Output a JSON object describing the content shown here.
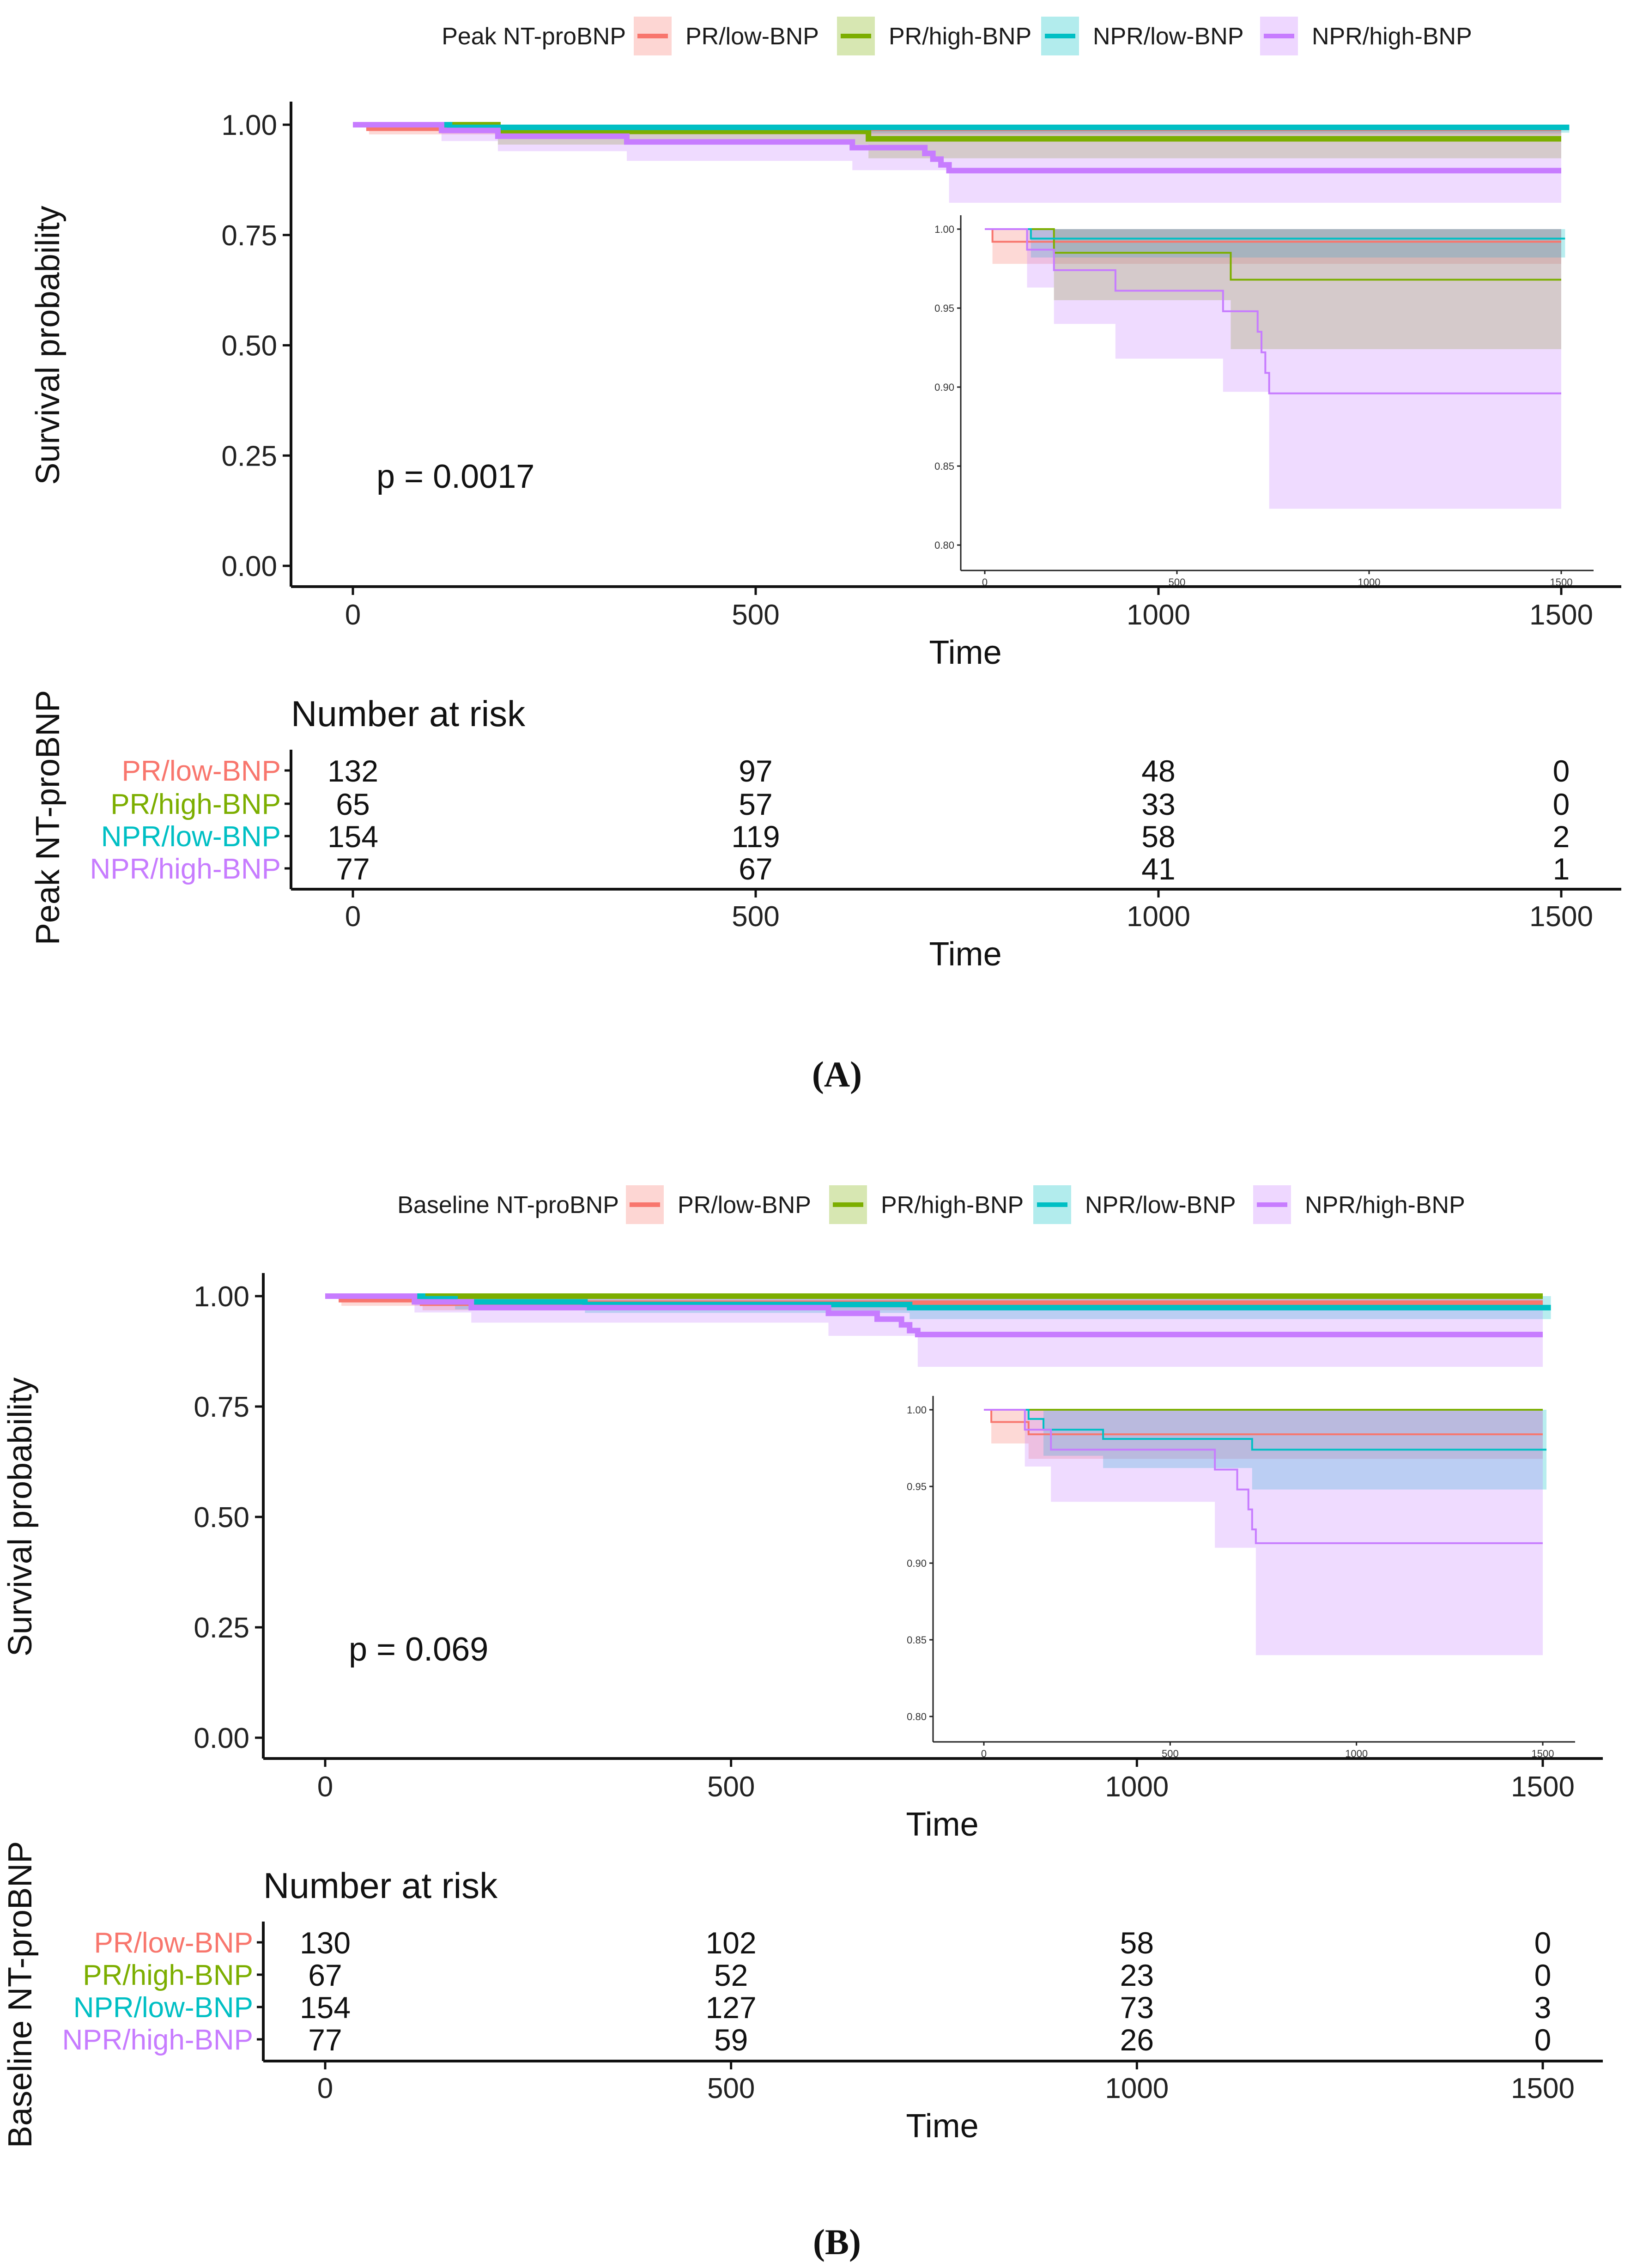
{
  "colors": {
    "PR/low-BNP": "#F8766D",
    "PR/high-BNP": "#7CAE00",
    "NPR/low-BNP": "#00BFC4",
    "NPR/high-BNP": "#C77CFF"
  },
  "chart_data": [
    {
      "panel": "(A)",
      "panel_letter": "A",
      "type": "line",
      "subtype": "kaplan-meier",
      "legend_title": "Peak NT-proBNP",
      "legend_position": "top",
      "xlabel": "Time",
      "ylabel": "Survival probability",
      "xlim": [
        0,
        1500
      ],
      "ylim": [
        0,
        1
      ],
      "x_ticks": [
        "0",
        "500",
        "1000",
        "1500"
      ],
      "y_ticks": [
        "0.00",
        "0.25",
        "0.50",
        "0.75",
        "1.00"
      ],
      "pvalue_text": "p = 0.0017",
      "inset": {
        "ylim": [
          0.8,
          1.0
        ],
        "x_ticks": [
          "0",
          "500",
          "1000",
          "1500"
        ],
        "y_ticks": [
          "0.80",
          "0.85",
          "0.90",
          "0.95",
          "1.00"
        ]
      },
      "series": [
        {
          "name": "PR/low-BNP",
          "end": 1500,
          "steps": [
            [
              0,
              1.0
            ],
            [
              20,
              0.992
            ]
          ],
          "ci_lower": [
            [
              0,
              1.0
            ],
            [
              20,
              0.978
            ],
            [
              1500,
              0.978
            ]
          ],
          "ci_upper": [
            [
              0,
              1.0
            ],
            [
              1500,
              1.0
            ]
          ]
        },
        {
          "name": "PR/high-BNP",
          "end": 1500,
          "steps": [
            [
              0,
              1.0
            ],
            [
              180,
              0.985
            ],
            [
              640,
              0.968
            ]
          ],
          "ci_lower": [
            [
              0,
              1.0
            ],
            [
              180,
              0.955
            ],
            [
              640,
              0.924
            ],
            [
              1500,
              0.924
            ]
          ],
          "ci_upper": [
            [
              0,
              1.0
            ],
            [
              1500,
              1.0
            ]
          ]
        },
        {
          "name": "NPR/low-BNP",
          "end": 1510,
          "steps": [
            [
              0,
              1.0
            ],
            [
              120,
              0.994
            ]
          ],
          "ci_lower": [
            [
              0,
              1.0
            ],
            [
              120,
              0.982
            ],
            [
              1510,
              0.982
            ]
          ],
          "ci_upper": [
            [
              0,
              1.0
            ],
            [
              1510,
              1.0
            ]
          ]
        },
        {
          "name": "NPR/high-BNP",
          "end": 1500,
          "steps": [
            [
              0,
              1.0
            ],
            [
              110,
              0.987
            ],
            [
              180,
              0.974
            ],
            [
              340,
              0.961
            ],
            [
              620,
              0.948
            ],
            [
              710,
              0.935
            ],
            [
              720,
              0.922
            ],
            [
              730,
              0.909
            ],
            [
              740,
              0.896
            ]
          ],
          "ci_lower": [
            [
              0,
              1.0
            ],
            [
              110,
              0.963
            ],
            [
              180,
              0.94
            ],
            [
              340,
              0.918
            ],
            [
              620,
              0.897
            ],
            [
              740,
              0.823
            ],
            [
              1500,
              0.823
            ]
          ],
          "ci_upper": [
            [
              0,
              1.0
            ],
            [
              1500,
              1.0
            ]
          ]
        }
      ],
      "risk_table": {
        "title": "Number at risk",
        "strata_title": "Peak NT-proBNP",
        "xlabel": "Time",
        "times": [
          0,
          500,
          1000,
          1500
        ],
        "x_ticks": [
          "0",
          "500",
          "1000",
          "1500"
        ],
        "rows": [
          {
            "name": "PR/low-BNP",
            "counts": [
              "132",
              "97",
              "48",
              "0"
            ]
          },
          {
            "name": "PR/high-BNP",
            "counts": [
              "65",
              "57",
              "33",
              "0"
            ]
          },
          {
            "name": "NPR/low-BNP",
            "counts": [
              "154",
              "119",
              "58",
              "2"
            ]
          },
          {
            "name": "NPR/high-BNP",
            "counts": [
              "77",
              "67",
              "41",
              "1"
            ]
          }
        ]
      }
    },
    {
      "panel": "(B)",
      "panel_letter": "B",
      "type": "line",
      "subtype": "kaplan-meier",
      "legend_title": "Baseline NT-proBNP",
      "legend_position": "top",
      "xlabel": "Time",
      "ylabel": "Survival probability",
      "xlim": [
        0,
        1500
      ],
      "ylim": [
        0,
        1
      ],
      "x_ticks": [
        "0",
        "500",
        "1000",
        "1500"
      ],
      "y_ticks": [
        "0.00",
        "0.25",
        "0.50",
        "0.75",
        "1.00"
      ],
      "pvalue_text": "p = 0.069",
      "inset": {
        "ylim": [
          0.8,
          1.0
        ],
        "x_ticks": [
          "0",
          "500",
          "1000",
          "1500"
        ],
        "y_ticks": [
          "0.80",
          "0.85",
          "0.90",
          "0.95",
          "1.00"
        ]
      },
      "series": [
        {
          "name": "PR/low-BNP",
          "end": 1500,
          "steps": [
            [
              0,
              1.0
            ],
            [
              20,
              0.992
            ],
            [
              120,
              0.984
            ]
          ],
          "ci_lower": [
            [
              0,
              1.0
            ],
            [
              20,
              0.978
            ],
            [
              120,
              0.968
            ],
            [
              1500,
              0.968
            ]
          ],
          "ci_upper": [
            [
              0,
              1.0
            ],
            [
              1500,
              1.0
            ]
          ]
        },
        {
          "name": "PR/high-BNP",
          "end": 1500,
          "steps": [
            [
              0,
              1.0
            ]
          ],
          "ci_lower": [
            [
              0,
              1.0
            ],
            [
              1500,
              0.998
            ]
          ],
          "ci_upper": [
            [
              0,
              1.0
            ],
            [
              1500,
              1.0
            ]
          ]
        },
        {
          "name": "NPR/low-BNP",
          "end": 1510,
          "steps": [
            [
              0,
              1.0
            ],
            [
              120,
              0.994
            ],
            [
              160,
              0.987
            ],
            [
              320,
              0.981
            ],
            [
              720,
              0.974
            ]
          ],
          "ci_lower": [
            [
              0,
              1.0
            ],
            [
              160,
              0.97
            ],
            [
              320,
              0.962
            ],
            [
              720,
              0.948
            ],
            [
              1510,
              0.948
            ]
          ],
          "ci_upper": [
            [
              0,
              1.0
            ],
            [
              1510,
              1.0
            ]
          ]
        },
        {
          "name": "NPR/high-BNP",
          "end": 1500,
          "steps": [
            [
              0,
              1.0
            ],
            [
              110,
              0.987
            ],
            [
              180,
              0.974
            ],
            [
              620,
              0.961
            ],
            [
              680,
              0.948
            ],
            [
              710,
              0.935
            ],
            [
              720,
              0.922
            ],
            [
              730,
              0.913
            ]
          ],
          "ci_lower": [
            [
              0,
              1.0
            ],
            [
              110,
              0.963
            ],
            [
              180,
              0.94
            ],
            [
              620,
              0.91
            ],
            [
              730,
              0.84
            ],
            [
              1500,
              0.84
            ]
          ],
          "ci_upper": [
            [
              0,
              1.0
            ],
            [
              1500,
              1.0
            ]
          ]
        }
      ],
      "risk_table": {
        "title": "Number at risk",
        "strata_title": "Baseline NT-proBNP",
        "xlabel": "Time",
        "times": [
          0,
          500,
          1000,
          1500
        ],
        "x_ticks": [
          "0",
          "500",
          "1000",
          "1500"
        ],
        "rows": [
          {
            "name": "PR/low-BNP",
            "counts": [
              "130",
              "102",
              "58",
              "0"
            ]
          },
          {
            "name": "PR/high-BNP",
            "counts": [
              "67",
              "52",
              "23",
              "0"
            ]
          },
          {
            "name": "NPR/low-BNP",
            "counts": [
              "154",
              "127",
              "73",
              "3"
            ]
          },
          {
            "name": "NPR/high-BNP",
            "counts": [
              "77",
              "59",
              "26",
              "0"
            ]
          }
        ]
      }
    }
  ]
}
